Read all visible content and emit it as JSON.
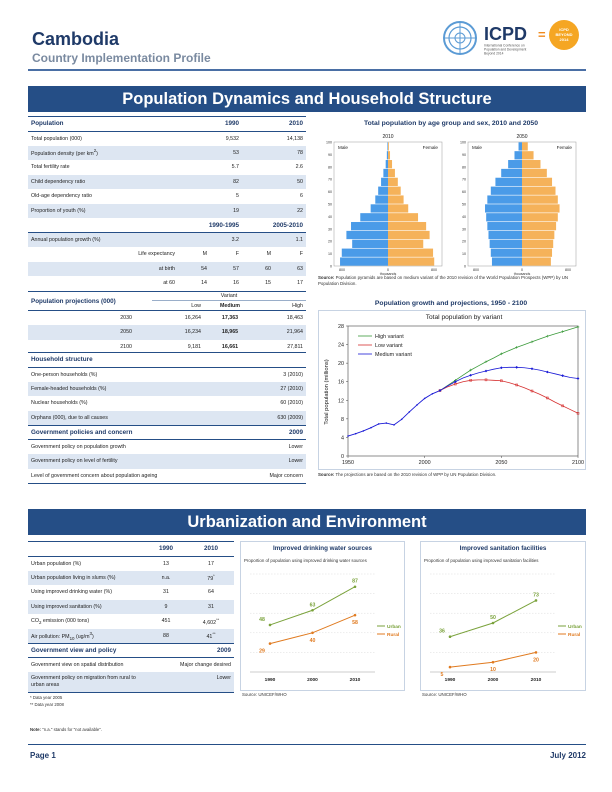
{
  "header": {
    "country": "Cambodia",
    "subtitle": "Country Implementation Profile",
    "logo_text": "ICPD",
    "logo_equals": "=",
    "logo_tagline": [
      "International Conference on",
      "Population and Development",
      "Beyond 2014"
    ],
    "logo_circle_text": [
      "ICPD",
      "BEYOND",
      "2014"
    ]
  },
  "colors": {
    "brand": "#254e86",
    "band": "#dde6f2",
    "male": "#4a9be8",
    "female": "#f5b25a"
  },
  "sections": {
    "pop_title": "Population Dynamics and Household Structure",
    "urban_title": "Urbanization and Environment"
  },
  "pop_table": {
    "hdr": [
      "Population",
      "1990",
      "2010"
    ],
    "rows1": [
      {
        "label": "Total population (000)",
        "v1": "9,532",
        "v2": "14,138"
      },
      {
        "label": "Population density (per km",
        "sup": "2",
        "label_end": ")",
        "v1": "53",
        "v2": "78"
      },
      {
        "label": "Total fertility rate",
        "v1": "5.7",
        "v2": "2.6"
      },
      {
        "label": "Child dependency ratio",
        "v1": "82",
        "v2": "50"
      },
      {
        "label": "Old-age dependency ratio",
        "v1": "5",
        "v2": "6"
      },
      {
        "label": "Proportion of youth (%)",
        "v1": "19",
        "v2": "22"
      }
    ],
    "hdr2": [
      "1990-1995",
      "2005-2010"
    ],
    "growth": {
      "label": "Annual population growth (%)",
      "v1": "3.2",
      "v2": "1.1"
    },
    "le": {
      "label": "Life expectancy",
      "h": [
        "M",
        "F",
        "M",
        "F"
      ]
    },
    "le_birth": {
      "label": "at birth",
      "v": [
        "54",
        "57",
        "60",
        "63"
      ]
    },
    "le_60": {
      "label": "at 60",
      "v": [
        "14",
        "16",
        "15",
        "17"
      ]
    },
    "proj_title": "Population projections (000)",
    "variant": "Variant",
    "variant_cols": [
      "Low",
      "Medium",
      "High"
    ],
    "proj_rows": [
      {
        "year": "2030",
        "low": "16,264",
        "med": "17,363",
        "high": "18,463"
      },
      {
        "year": "2050",
        "low": "16,234",
        "med": "18,965",
        "high": "21,964"
      },
      {
        "year": "2100",
        "low": "9,181",
        "med": "16,661",
        "high": "27,811"
      }
    ],
    "hh_title": "Household structure",
    "hh_rows": [
      {
        "label": "One-person households (%)",
        "v": "3 (2010)"
      },
      {
        "label": "Female-headed households (%)",
        "v": "27 (2010)"
      },
      {
        "label": "Nuclear households (%)",
        "v": "60 (2010)"
      },
      {
        "label": "Orphans (000), due to all causes",
        "v": "630 (2009)"
      }
    ],
    "gov_title": "Government policies and concern",
    "gov_year": "2009",
    "gov_rows": [
      {
        "label": "Government policy on population growth",
        "v": "Lower"
      },
      {
        "label": "Government policy on level of fertility",
        "v": "Lower"
      },
      {
        "label": "Level of government concern about population ageing",
        "v": "Major concern"
      }
    ]
  },
  "pyramid": {
    "title": "Total population by age group and sex, 2010 and 2050",
    "years": [
      "2010",
      "2050"
    ],
    "male": "Male",
    "female": "Female",
    "y_ticks": [
      "0",
      "10",
      "20",
      "30",
      "40",
      "50",
      "60",
      "70",
      "80",
      "90",
      "100"
    ],
    "x_ticks": [
      "800",
      "0",
      "800"
    ],
    "x_label": "thousands",
    "source_bold": "Source:",
    "source_text": "Population pyramids are based on medium variant of the 2010 revision of the World Population Prospects (WPP) by UN Population Division.",
    "p2010_male": [
      830,
      800,
      620,
      720,
      640,
      480,
      300,
      220,
      170,
      120,
      80,
      40,
      20,
      10
    ],
    "p2010_female": [
      800,
      780,
      610,
      720,
      660,
      520,
      350,
      270,
      220,
      170,
      120,
      70,
      35,
      15
    ],
    "p2050_male": [
      520,
      540,
      560,
      580,
      600,
      620,
      640,
      600,
      540,
      460,
      360,
      240,
      130,
      60
    ],
    "p2050_female": [
      500,
      520,
      540,
      560,
      590,
      620,
      650,
      620,
      580,
      520,
      430,
      320,
      200,
      100
    ]
  },
  "growth_chart": {
    "title": "Population growth and projections, 1950 - 2100",
    "subtitle": "Total population by variant",
    "ylabel": "Total population (millions)",
    "y_ticks": [
      "0",
      "4",
      "8",
      "12",
      "16",
      "20",
      "24",
      "28"
    ],
    "x_ticks": [
      "1950",
      "2000",
      "2050",
      "2100"
    ],
    "legend": [
      "High variant",
      "Low variant",
      "Medium variant"
    ],
    "source_bold": "Source:",
    "source_text": "The projections are based on the 2010 revision of WPP by UN Population Division."
  },
  "chart_data": [
    {
      "type": "line",
      "title": "Population growth and projections, 1950 - 2100",
      "xlabel": "",
      "ylabel": "Total population (millions)",
      "ylim": [
        0,
        28
      ],
      "xlim": [
        1950,
        2100
      ],
      "history": {
        "x": [
          1950,
          1955,
          1960,
          1965,
          1970,
          1975,
          1980,
          1985,
          1990,
          1995,
          2000,
          2005,
          2010
        ],
        "y": [
          4.3,
          4.8,
          5.4,
          6.1,
          6.9,
          7.1,
          6.7,
          7.9,
          9.5,
          11.0,
          12.4,
          13.4,
          14.1
        ]
      },
      "series": [
        {
          "name": "High variant",
          "color": "#3a9a3a",
          "x": [
            2010,
            2015,
            2020,
            2025,
            2030,
            2035,
            2040,
            2045,
            2050,
            2055,
            2060,
            2065,
            2070,
            2075,
            2080,
            2085,
            2090,
            2095,
            2100
          ],
          "y": [
            14.1,
            15.2,
            16.3,
            17.4,
            18.5,
            19.4,
            20.3,
            21.1,
            22.0,
            22.7,
            23.4,
            24.0,
            24.6,
            25.2,
            25.8,
            26.3,
            26.8,
            27.3,
            27.8
          ]
        },
        {
          "name": "Low variant",
          "color": "#d63030",
          "x": [
            2010,
            2015,
            2020,
            2025,
            2030,
            2035,
            2040,
            2045,
            2050,
            2055,
            2060,
            2065,
            2070,
            2075,
            2080,
            2085,
            2090,
            2095,
            2100
          ],
          "y": [
            14.1,
            14.9,
            15.5,
            16.0,
            16.3,
            16.4,
            16.4,
            16.3,
            16.2,
            15.8,
            15.3,
            14.7,
            14.0,
            13.3,
            12.5,
            11.6,
            10.8,
            10.0,
            9.2
          ]
        },
        {
          "name": "Medium variant",
          "color": "#1a1ad6",
          "x": [
            2010,
            2015,
            2020,
            2025,
            2030,
            2035,
            2040,
            2045,
            2050,
            2055,
            2060,
            2065,
            2070,
            2075,
            2080,
            2085,
            2090,
            2095,
            2100
          ],
          "y": [
            14.1,
            15.1,
            16.0,
            16.8,
            17.4,
            17.9,
            18.3,
            18.7,
            19.0,
            19.1,
            19.1,
            19.0,
            18.8,
            18.5,
            18.1,
            17.7,
            17.3,
            16.9,
            16.7
          ]
        }
      ]
    },
    {
      "type": "line",
      "title": "Improved drinking water sources",
      "subtitle": "Proportion of population using improved drinking water sources",
      "categories": [
        "1990",
        "2000",
        "2010"
      ],
      "series": [
        {
          "name": "Urban",
          "color": "#7aa23b",
          "values": [
            48,
            63,
            87
          ]
        },
        {
          "name": "Rural",
          "color": "#e07a1f",
          "values": [
            29,
            40,
            58
          ]
        }
      ]
    },
    {
      "type": "line",
      "title": "Improved sanitation facilities",
      "subtitle": "Proportion of population using improved sanitation facilities",
      "categories": [
        "1990",
        "2000",
        "2010"
      ],
      "series": [
        {
          "name": "Urban",
          "color": "#7aa23b",
          "values": [
            36,
            50,
            73
          ]
        },
        {
          "name": "Rural",
          "color": "#e07a1f",
          "values": [
            5,
            10,
            20
          ]
        }
      ]
    }
  ],
  "urban_table": {
    "years": [
      "1990",
      "2010"
    ],
    "rows": [
      {
        "label": "Urban population (%)",
        "v1": "13",
        "v2": "17",
        "note": ""
      },
      {
        "label": "Urban population living in slums (%)",
        "v1": "n.a.",
        "v2": "79",
        "note": "*"
      },
      {
        "label": "Using improved drinking water (%)",
        "v1": "31",
        "v2": "64",
        "note": ""
      },
      {
        "label": "Using improved sanitation (%)",
        "v1": "9",
        "v2": "31",
        "note": ""
      },
      {
        "label": "CO",
        "sub": "2",
        "label_end": " emission (000 tons)",
        "v1": "451",
        "v2": "4,602",
        "note": "**"
      },
      {
        "label": "Air pollution: PM",
        "sub": "10",
        "label_end": " (ug/m",
        "sup": "3",
        "label_end2": ")",
        "v1": "88",
        "v2": "41",
        "note": "**"
      }
    ],
    "gov_title": "Government view and policy",
    "gov_year": "2009",
    "gov_rows": [
      {
        "label": "Government view on spatial distribution",
        "v": "Major change desired"
      },
      {
        "label": "Government policy on migration from rural to urban areas",
        "v": "Lower"
      }
    ],
    "notes": [
      "* Data year 2005",
      "** Data year 2008"
    ],
    "na_note_bold": "Note:",
    "na_note": "\"n.a.\" stands for \"not available\"."
  },
  "water_chart": {
    "title": "Improved drinking water sources",
    "subtitle": "Proportion of population using improved drinking water sources",
    "source": "Source: UNICEF/WHO"
  },
  "san_chart": {
    "title": "Improved sanitation facilities",
    "subtitle": "Proportion of population using improved sanitation facilities",
    "source": "Source: UNICEF/WHO"
  },
  "footer": {
    "page": "Page 1",
    "date": "July 2012"
  }
}
